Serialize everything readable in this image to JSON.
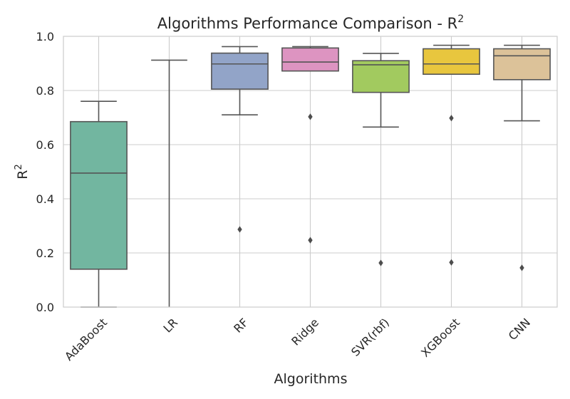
{
  "chart_data": {
    "type": "boxplot",
    "title": "Algorithms Performance Comparison - R",
    "title_sup": "2",
    "xlabel": "Algorithms",
    "ylabel": "R",
    "ylabel_sup": "2",
    "ylim": [
      0.0,
      1.0
    ],
    "yticks": [
      "0.0",
      "0.2",
      "0.4",
      "0.6",
      "0.8",
      "1.0"
    ],
    "grid": true,
    "categories": [
      "AdaBoost",
      "LR",
      "RF",
      "Ridge",
      "SVR(rbf)",
      "XGBoost",
      "CNN"
    ],
    "boxes": [
      {
        "name": "AdaBoost",
        "whisker_low": 0.0,
        "q1": 0.14,
        "median": 0.495,
        "q3": 0.685,
        "whisker_high": 0.76,
        "outliers": [],
        "color": "#72b6a0"
      },
      {
        "name": "LR",
        "whisker_low": 0.0,
        "q1": 0.0,
        "median": 0.0,
        "q3": 0.0,
        "whisker_high": 0.912,
        "outliers": [],
        "color": "#e8956f"
      },
      {
        "name": "RF",
        "whisker_low": 0.71,
        "q1": 0.805,
        "median": 0.898,
        "q3": 0.938,
        "whisker_high": 0.962,
        "outliers": [
          0.287
        ],
        "color": "#92a4c8"
      },
      {
        "name": "Ridge",
        "whisker_low": 0.872,
        "q1": 0.872,
        "median": 0.905,
        "q3": 0.957,
        "whisker_high": 0.962,
        "outliers": [
          0.703,
          0.247
        ],
        "color": "#dd94c1"
      },
      {
        "name": "SVR(rbf)",
        "whisker_low": 0.665,
        "q1": 0.793,
        "median": 0.895,
        "q3": 0.91,
        "whisker_high": 0.937,
        "outliers": [
          0.163
        ],
        "color": "#a2ca5f"
      },
      {
        "name": "XGBoost",
        "whisker_low": 0.86,
        "q1": 0.86,
        "median": 0.898,
        "q3": 0.954,
        "whisker_high": 0.967,
        "outliers": [
          0.698,
          0.165
        ],
        "color": "#e8c63e"
      },
      {
        "name": "CNN",
        "whisker_low": 0.688,
        "q1": 0.84,
        "median": 0.928,
        "q3": 0.954,
        "whisker_high": 0.967,
        "outliers": [
          0.145
        ],
        "color": "#dcc299"
      }
    ]
  }
}
